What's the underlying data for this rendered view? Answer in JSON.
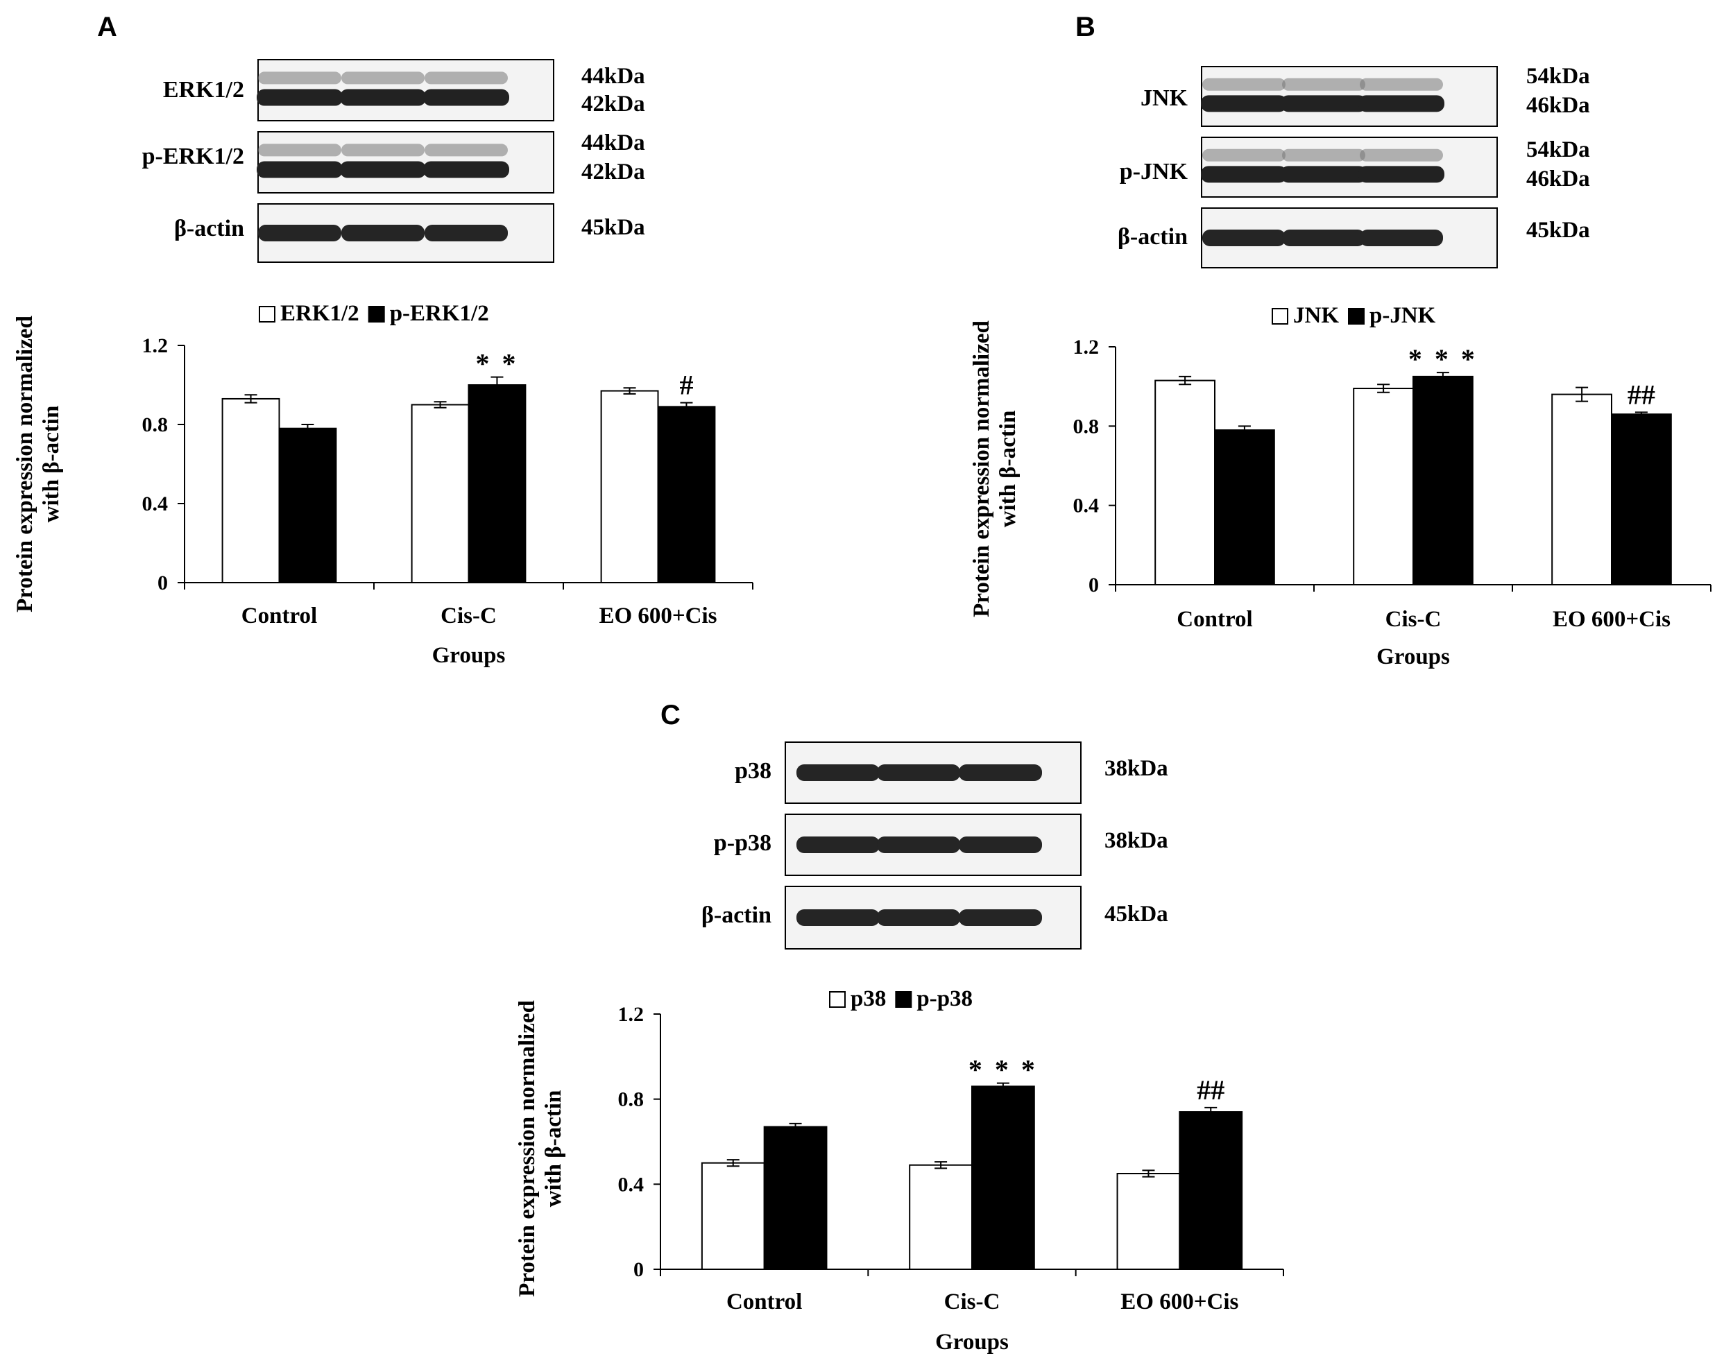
{
  "chart_data": [
    {
      "type": "bar",
      "panel": "A",
      "blots": [
        {
          "label": "ERK1/2",
          "sizes": [
            "44kDa",
            "42kDa"
          ]
        },
        {
          "label": "p-ERK1/2",
          "sizes": [
            "44kDa",
            "42kDa"
          ]
        },
        {
          "label": "β-actin",
          "sizes": [
            "45kDa"
          ]
        }
      ],
      "categories": [
        "Control",
        "Cis-C",
        "EO 600+Cis"
      ],
      "series": [
        {
          "name": "ERK1/2",
          "color": "#ffffff",
          "values": [
            0.93,
            0.9,
            0.97
          ],
          "errors": [
            0.02,
            0.015,
            0.015
          ]
        },
        {
          "name": "p-ERK1/2",
          "color": "#000000",
          "values": [
            0.78,
            1.0,
            0.89
          ],
          "errors": [
            0.02,
            0.04,
            0.02
          ]
        }
      ],
      "significance": [
        "",
        "* *",
        "#"
      ],
      "xlabel": "Groups",
      "ylabel_lines": [
        "Protein expression normalized",
        "with β-actin"
      ],
      "yticks": [
        "0",
        "0.4",
        "0.8",
        "1.2"
      ],
      "ylim": [
        0,
        1.2
      ],
      "grid": false,
      "legend_position": "top"
    },
    {
      "type": "bar",
      "panel": "B",
      "blots": [
        {
          "label": "JNK",
          "sizes": [
            "54kDa",
            "46kDa"
          ]
        },
        {
          "label": "p-JNK",
          "sizes": [
            "54kDa",
            "46kDa"
          ]
        },
        {
          "label": "β-actin",
          "sizes": [
            "45kDa"
          ]
        }
      ],
      "categories": [
        "Control",
        "Cis-C",
        "EO 600+Cis"
      ],
      "series": [
        {
          "name": "JNK",
          "color": "#ffffff",
          "values": [
            1.03,
            0.99,
            0.96
          ],
          "errors": [
            0.02,
            0.02,
            0.035
          ]
        },
        {
          "name": "p-JNK",
          "color": "#000000",
          "values": [
            0.78,
            1.05,
            0.86
          ],
          "errors": [
            0.02,
            0.02,
            0.01
          ]
        }
      ],
      "significance": [
        "",
        "* * *",
        "##"
      ],
      "xlabel": "Groups",
      "ylabel_lines": [
        "Protein expression normalized",
        "with β-actin"
      ],
      "yticks": [
        "0",
        "0.4",
        "0.8",
        "1.2"
      ],
      "ylim": [
        0,
        1.2
      ],
      "grid": false,
      "legend_position": "top"
    },
    {
      "type": "bar",
      "panel": "C",
      "blots": [
        {
          "label": "p38",
          "sizes": [
            "38kDa"
          ]
        },
        {
          "label": "p-p38",
          "sizes": [
            "38kDa"
          ]
        },
        {
          "label": "β-actin",
          "sizes": [
            "45kDa"
          ]
        }
      ],
      "categories": [
        "Control",
        "Cis-C",
        "EO 600+Cis"
      ],
      "series": [
        {
          "name": "p38",
          "color": "#ffffff",
          "values": [
            0.5,
            0.49,
            0.45
          ],
          "errors": [
            0.015,
            0.015,
            0.015
          ]
        },
        {
          "name": "p-p38",
          "color": "#000000",
          "values": [
            0.67,
            0.86,
            0.74
          ],
          "errors": [
            0.015,
            0.015,
            0.02
          ]
        }
      ],
      "significance": [
        "",
        "* * *",
        "##"
      ],
      "xlabel": "Groups",
      "ylabel_lines": [
        "Protein expression normalized",
        "with β-actin"
      ],
      "yticks": [
        "0",
        "0.4",
        "0.8",
        "1.2"
      ],
      "ylim": [
        0,
        1.2
      ],
      "grid": false,
      "legend_position": "top"
    }
  ]
}
